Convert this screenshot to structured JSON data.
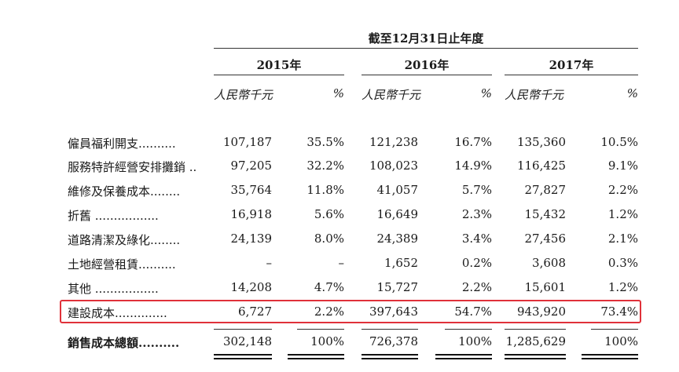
{
  "header": {
    "period": "截至12月31日止年度",
    "years": [
      "2015年",
      "2016年",
      "2017年"
    ],
    "unit_label": "人民幣千元",
    "percent_label": "%"
  },
  "rows": [
    {
      "label": "僱員福利開支..........",
      "v2015": "107,187",
      "p2015": "35.5%",
      "v2016": "121,238",
      "p2016": "16.7%",
      "v2017": "135,360",
      "p2017": "10.5%"
    },
    {
      "label": "服務特許經營安排攤銷 ..",
      "v2015": "97,205",
      "p2015": "32.2%",
      "v2016": "108,023",
      "p2016": "14.9%",
      "v2017": "116,425",
      "p2017": "9.1%"
    },
    {
      "label": "維修及保養成本........",
      "v2015": "35,764",
      "p2015": "11.8%",
      "v2016": "41,057",
      "p2016": "5.7%",
      "v2017": "27,827",
      "p2017": "2.2%"
    },
    {
      "label": "折舊 .................",
      "v2015": "16,918",
      "p2015": "5.6%",
      "v2016": "16,649",
      "p2016": "2.3%",
      "v2017": "15,432",
      "p2017": "1.2%"
    },
    {
      "label": "道路清潔及綠化........",
      "v2015": "24,139",
      "p2015": "8.0%",
      "v2016": "24,389",
      "p2016": "3.4%",
      "v2017": "27,456",
      "p2017": "2.1%"
    },
    {
      "label": "土地經營租賃..........",
      "v2015": "–",
      "p2015": "–",
      "v2016": "1,652",
      "p2016": "0.2%",
      "v2017": "3,608",
      "p2017": "0.3%"
    },
    {
      "label": "其他 .................",
      "v2015": "14,208",
      "p2015": "4.7%",
      "v2016": "15,727",
      "p2016": "2.2%",
      "v2017": "15,601",
      "p2017": "1.2%"
    },
    {
      "label": "建設成本..............",
      "v2015": "6,727",
      "p2015": "2.2%",
      "v2016": "397,643",
      "p2016": "54.7%",
      "v2017": "943,920",
      "p2017": "73.4%"
    }
  ],
  "total": {
    "label": "銷售成本總額..........",
    "v2015": "302,148",
    "p2015": "100%",
    "v2016": "726,378",
    "p2016": "100%",
    "v2017": "1,285,629",
    "p2017": "100%"
  },
  "highlight_color": "#e0313a"
}
